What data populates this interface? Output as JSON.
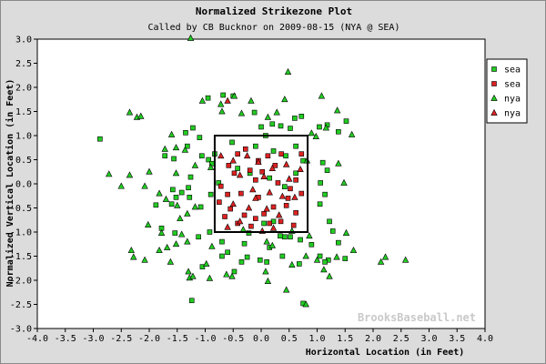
{
  "chart_data": {
    "type": "scatter",
    "title": "Normalized Strikezone Plot",
    "subtitle": "Called by CB Bucknor on 2009-08-15 (NYA @ SEA)",
    "xlabel": "Horizontal Location (in Feet)",
    "ylabel": "Normalized Vertical Location (in Feet)",
    "xlim": [
      -4.0,
      4.0
    ],
    "ylim": [
      -3.0,
      3.0
    ],
    "xticks": [
      "-4.0",
      "-3.5",
      "-3.0",
      "-2.5",
      "-2.0",
      "-1.5",
      "-1.0",
      "-0.5",
      "0.0",
      "0.5",
      "1.0",
      "1.5",
      "2.0",
      "2.5",
      "3.0",
      "3.5",
      "4.0"
    ],
    "yticks": [
      "3.0",
      "2.5",
      "2.0",
      "1.5",
      "1.0",
      "0.5",
      "0.0",
      "-0.5",
      "-1.0",
      "-1.5",
      "-2.0",
      "-2.5",
      "-3.0"
    ],
    "strike_zone": {
      "x": [
        -0.83,
        0.83
      ],
      "y": [
        -1.0,
        1.0
      ]
    },
    "legend_position": "top-right",
    "watermark": "BrooksBaseball.net",
    "colors": {
      "ball": "#22cc22",
      "strike": "#dd2222",
      "plot_bg": "#ffffff",
      "outer_bg": "#dcdcdc"
    },
    "series": [
      {
        "name": "sea",
        "marker": "square",
        "color": "#22cc22",
        "points": [
          [
            -0.95,
            1.78
          ],
          [
            -0.68,
            1.84
          ],
          [
            -0.5,
            1.82
          ],
          [
            -0.12,
            1.48
          ],
          [
            0.0,
            1.18
          ],
          [
            0.2,
            1.24
          ],
          [
            0.35,
            1.2
          ],
          [
            0.52,
            1.15
          ],
          [
            0.6,
            1.36
          ],
          [
            0.72,
            1.4
          ],
          [
            1.04,
            1.18
          ],
          [
            1.18,
            1.22
          ],
          [
            1.38,
            1.08
          ],
          [
            1.52,
            1.3
          ],
          [
            -1.22,
            1.16
          ],
          [
            -1.35,
            1.06
          ],
          [
            -1.1,
            0.96
          ],
          [
            -1.32,
            0.78
          ],
          [
            -1.06,
            0.58
          ],
          [
            -0.94,
            0.5
          ],
          [
            -0.88,
            0.42
          ],
          [
            -0.83,
            0.62
          ],
          [
            -1.56,
            0.52
          ],
          [
            -1.72,
            0.58
          ],
          [
            -0.52,
            0.86
          ],
          [
            -0.1,
            0.78
          ],
          [
            0.08,
            1.0
          ],
          [
            0.22,
            0.68
          ],
          [
            0.44,
            0.58
          ],
          [
            0.62,
            0.78
          ],
          [
            0.75,
            0.48
          ],
          [
            1.1,
            0.44
          ],
          [
            1.18,
            0.28
          ],
          [
            -1.26,
            0.14
          ],
          [
            -1.3,
            -0.08
          ],
          [
            -1.42,
            -0.18
          ],
          [
            -1.58,
            -0.12
          ],
          [
            -1.52,
            -0.28
          ],
          [
            -1.6,
            -0.42
          ],
          [
            -1.28,
            -0.28
          ],
          [
            -1.08,
            -0.48
          ],
          [
            -0.9,
            -0.22
          ],
          [
            -0.76,
            0.02
          ],
          [
            -0.42,
            0.32
          ],
          [
            -0.2,
            0.22
          ],
          [
            0.15,
            0.12
          ],
          [
            0.42,
            -0.06
          ],
          [
            0.62,
            0.22
          ],
          [
            1.06,
            0.02
          ],
          [
            1.05,
            -0.42
          ],
          [
            1.14,
            -0.22
          ],
          [
            1.22,
            -0.78
          ],
          [
            1.28,
            -0.98
          ],
          [
            1.38,
            -1.22
          ],
          [
            -1.88,
            -0.44
          ],
          [
            -1.78,
            -0.92
          ],
          [
            -1.54,
            -1.02
          ],
          [
            -1.12,
            -1.1
          ],
          [
            -0.92,
            -1.0
          ],
          [
            -0.7,
            -1.2
          ],
          [
            -0.6,
            -1.42
          ],
          [
            -0.3,
            -1.24
          ],
          [
            -0.22,
            -1.02
          ],
          [
            0.05,
            -0.82
          ],
          [
            0.22,
            -0.78
          ],
          [
            0.34,
            -1.08
          ],
          [
            0.52,
            -1.1
          ],
          [
            0.7,
            -1.16
          ],
          [
            0.9,
            -1.26
          ],
          [
            1.05,
            -1.5
          ],
          [
            1.2,
            -1.58
          ],
          [
            1.5,
            -1.55
          ],
          [
            -2.88,
            0.93
          ],
          [
            -0.48,
            -1.82
          ],
          [
            -0.35,
            -1.62
          ],
          [
            -0.25,
            -1.52
          ],
          [
            -0.02,
            -1.58
          ],
          [
            0.15,
            -1.32
          ],
          [
            0.38,
            -1.5
          ],
          [
            0.68,
            -1.66
          ],
          [
            1.14,
            -1.62
          ],
          [
            -1.05,
            -1.72
          ],
          [
            -1.24,
            -2.42
          ],
          [
            0.75,
            -2.48
          ],
          [
            -0.7,
            -1.5
          ],
          [
            0.1,
            -1.62
          ],
          [
            0.42,
            -1.1
          ]
        ]
      },
      {
        "name": "sea",
        "marker": "square",
        "color": "#dd2222",
        "points": [
          [
            -0.42,
            0.62
          ],
          [
            -0.2,
            0.28
          ],
          [
            0.02,
            0.25
          ],
          [
            0.12,
            0.58
          ],
          [
            0.36,
            0.62
          ],
          [
            -0.58,
            0.38
          ],
          [
            -0.48,
            0.22
          ],
          [
            -0.1,
            0.08
          ],
          [
            0.3,
            0.02
          ],
          [
            0.52,
            -0.1
          ],
          [
            0.72,
            -0.2
          ],
          [
            0.72,
            0.62
          ],
          [
            -0.72,
            -0.05
          ],
          [
            -0.6,
            -0.22
          ],
          [
            -0.36,
            -0.2
          ],
          [
            -0.05,
            -0.28
          ],
          [
            0.22,
            -0.48
          ],
          [
            0.45,
            -0.45
          ],
          [
            0.62,
            -0.6
          ],
          [
            -0.75,
            -0.38
          ],
          [
            -0.55,
            -0.52
          ],
          [
            -0.3,
            -0.65
          ],
          [
            -0.1,
            -0.72
          ],
          [
            0.15,
            -0.82
          ],
          [
            0.35,
            -0.78
          ],
          [
            0.58,
            -0.86
          ],
          [
            -0.65,
            -0.68
          ],
          [
            -0.42,
            -0.82
          ],
          [
            -0.18,
            -0.88
          ],
          [
            0.05,
            -0.62
          ],
          [
            0.48,
            -0.3
          ],
          [
            -0.28,
            0.72
          ],
          [
            0.62,
            0.08
          ],
          [
            -0.05,
            0.48
          ],
          [
            0.25,
            0.38
          ]
        ]
      },
      {
        "name": "nya",
        "marker": "triangle",
        "color": "#22cc22",
        "points": [
          [
            -1.26,
            3.02
          ],
          [
            0.48,
            2.32
          ],
          [
            -1.05,
            1.72
          ],
          [
            -0.72,
            1.65
          ],
          [
            -0.18,
            1.72
          ],
          [
            -0.48,
            1.82
          ],
          [
            0.42,
            1.75
          ],
          [
            1.08,
            1.82
          ],
          [
            -2.35,
            1.48
          ],
          [
            -2.22,
            1.38
          ],
          [
            -2.15,
            1.4
          ],
          [
            -0.7,
            1.5
          ],
          [
            -0.35,
            1.46
          ],
          [
            0.12,
            1.38
          ],
          [
            0.28,
            1.48
          ],
          [
            1.36,
            1.52
          ],
          [
            -1.6,
            1.02
          ],
          [
            -1.52,
            0.75
          ],
          [
            -1.36,
            0.7
          ],
          [
            -1.72,
            0.72
          ],
          [
            0.9,
            1.05
          ],
          [
            0.98,
            0.98
          ],
          [
            1.16,
            1.16
          ],
          [
            1.62,
            1.02
          ],
          [
            -2.72,
            0.2
          ],
          [
            -2.35,
            0.18
          ],
          [
            -2.0,
            0.25
          ],
          [
            -1.52,
            0.22
          ],
          [
            -1.18,
            0.38
          ],
          [
            -0.9,
            0.34
          ],
          [
            1.38,
            0.42
          ],
          [
            1.48,
            0.02
          ],
          [
            -2.5,
            -0.05
          ],
          [
            -2.08,
            -0.05
          ],
          [
            -1.82,
            -0.2
          ],
          [
            -1.7,
            -0.32
          ],
          [
            -1.5,
            -0.45
          ],
          [
            -1.18,
            -0.48
          ],
          [
            -1.32,
            -0.62
          ],
          [
            -1.45,
            -0.72
          ],
          [
            -2.02,
            -0.85
          ],
          [
            -1.78,
            -1.02
          ],
          [
            -1.42,
            -1.05
          ],
          [
            -1.32,
            -1.2
          ],
          [
            -1.52,
            -1.25
          ],
          [
            -1.68,
            -1.32
          ],
          [
            -1.82,
            -1.38
          ],
          [
            -1.62,
            -1.62
          ],
          [
            -1.3,
            -1.82
          ],
          [
            -1.28,
            -1.95
          ],
          [
            -1.22,
            -1.92
          ],
          [
            -2.32,
            -1.38
          ],
          [
            -2.28,
            -1.52
          ],
          [
            -2.08,
            -1.58
          ],
          [
            -0.88,
            -1.3
          ],
          [
            -0.98,
            -1.66
          ],
          [
            -0.32,
            -0.95
          ],
          [
            0.1,
            -1.2
          ],
          [
            0.2,
            -1.28
          ],
          [
            0.55,
            -0.98
          ],
          [
            0.86,
            -1.08
          ],
          [
            1.0,
            -1.58
          ],
          [
            1.35,
            -1.52
          ],
          [
            1.52,
            -1.02
          ],
          [
            1.65,
            -1.38
          ],
          [
            2.22,
            -1.52
          ],
          [
            2.58,
            -1.58
          ],
          [
            2.14,
            -1.62
          ],
          [
            0.82,
            0.48
          ],
          [
            -0.52,
            -1.92
          ],
          [
            0.08,
            -1.82
          ],
          [
            0.55,
            -1.68
          ],
          [
            0.8,
            -1.5
          ],
          [
            1.12,
            -1.78
          ],
          [
            1.22,
            -1.92
          ],
          [
            -0.62,
            -1.88
          ],
          [
            -0.92,
            -1.96
          ],
          [
            0.8,
            -2.5
          ],
          [
            0.12,
            -2.02
          ],
          [
            0.45,
            -2.2
          ]
        ]
      },
      {
        "name": "nya",
        "marker": "triangle",
        "color": "#dd2222",
        "points": [
          [
            -0.6,
            1.72
          ],
          [
            -0.5,
            0.48
          ],
          [
            -0.25,
            0.58
          ],
          [
            -0.05,
            0.45
          ],
          [
            0.2,
            0.32
          ],
          [
            0.45,
            0.4
          ],
          [
            -0.38,
            0.18
          ],
          [
            0.05,
            0.15
          ],
          [
            0.5,
            0.1
          ],
          [
            -0.15,
            -0.12
          ],
          [
            0.15,
            -0.18
          ],
          [
            0.38,
            -0.26
          ],
          [
            -0.5,
            -0.42
          ],
          [
            -0.22,
            -0.5
          ],
          [
            0.1,
            -0.52
          ],
          [
            0.32,
            -0.65
          ],
          [
            -0.38,
            -0.78
          ],
          [
            -0.6,
            -0.9
          ],
          [
            0.02,
            -0.98
          ],
          [
            0.22,
            -0.92
          ],
          [
            -0.1,
            -0.3
          ],
          [
            0.6,
            -0.28
          ],
          [
            -0.72,
            0.58
          ],
          [
            0.7,
            0.3
          ]
        ]
      }
    ]
  }
}
